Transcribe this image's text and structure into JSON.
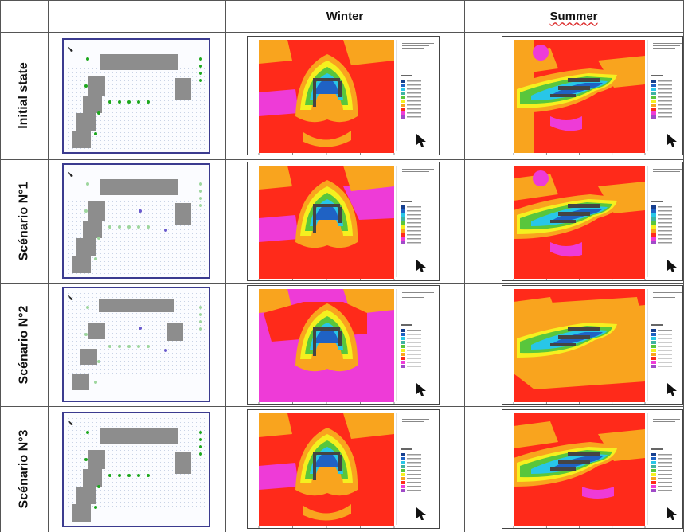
{
  "header": {
    "col1": "",
    "col2": "",
    "winter": "Winter",
    "summer": "Summer"
  },
  "rows": [
    {
      "label": "Initial state"
    },
    {
      "label": "Scénario N°1"
    },
    {
      "label": "Scénario N°2"
    },
    {
      "label": "Scénario N°3"
    }
  ],
  "colors": {
    "red": "#ff2a1a",
    "orange": "#f9a41e",
    "yellow": "#f5f01f",
    "green": "#59c63c",
    "cyan": "#28c6e8",
    "blue": "#1f62c4",
    "magenta": "#ee3bd7",
    "building": "#8d8d8d",
    "tree": "#1ea81e",
    "frame": "#3b3b8f"
  }
}
